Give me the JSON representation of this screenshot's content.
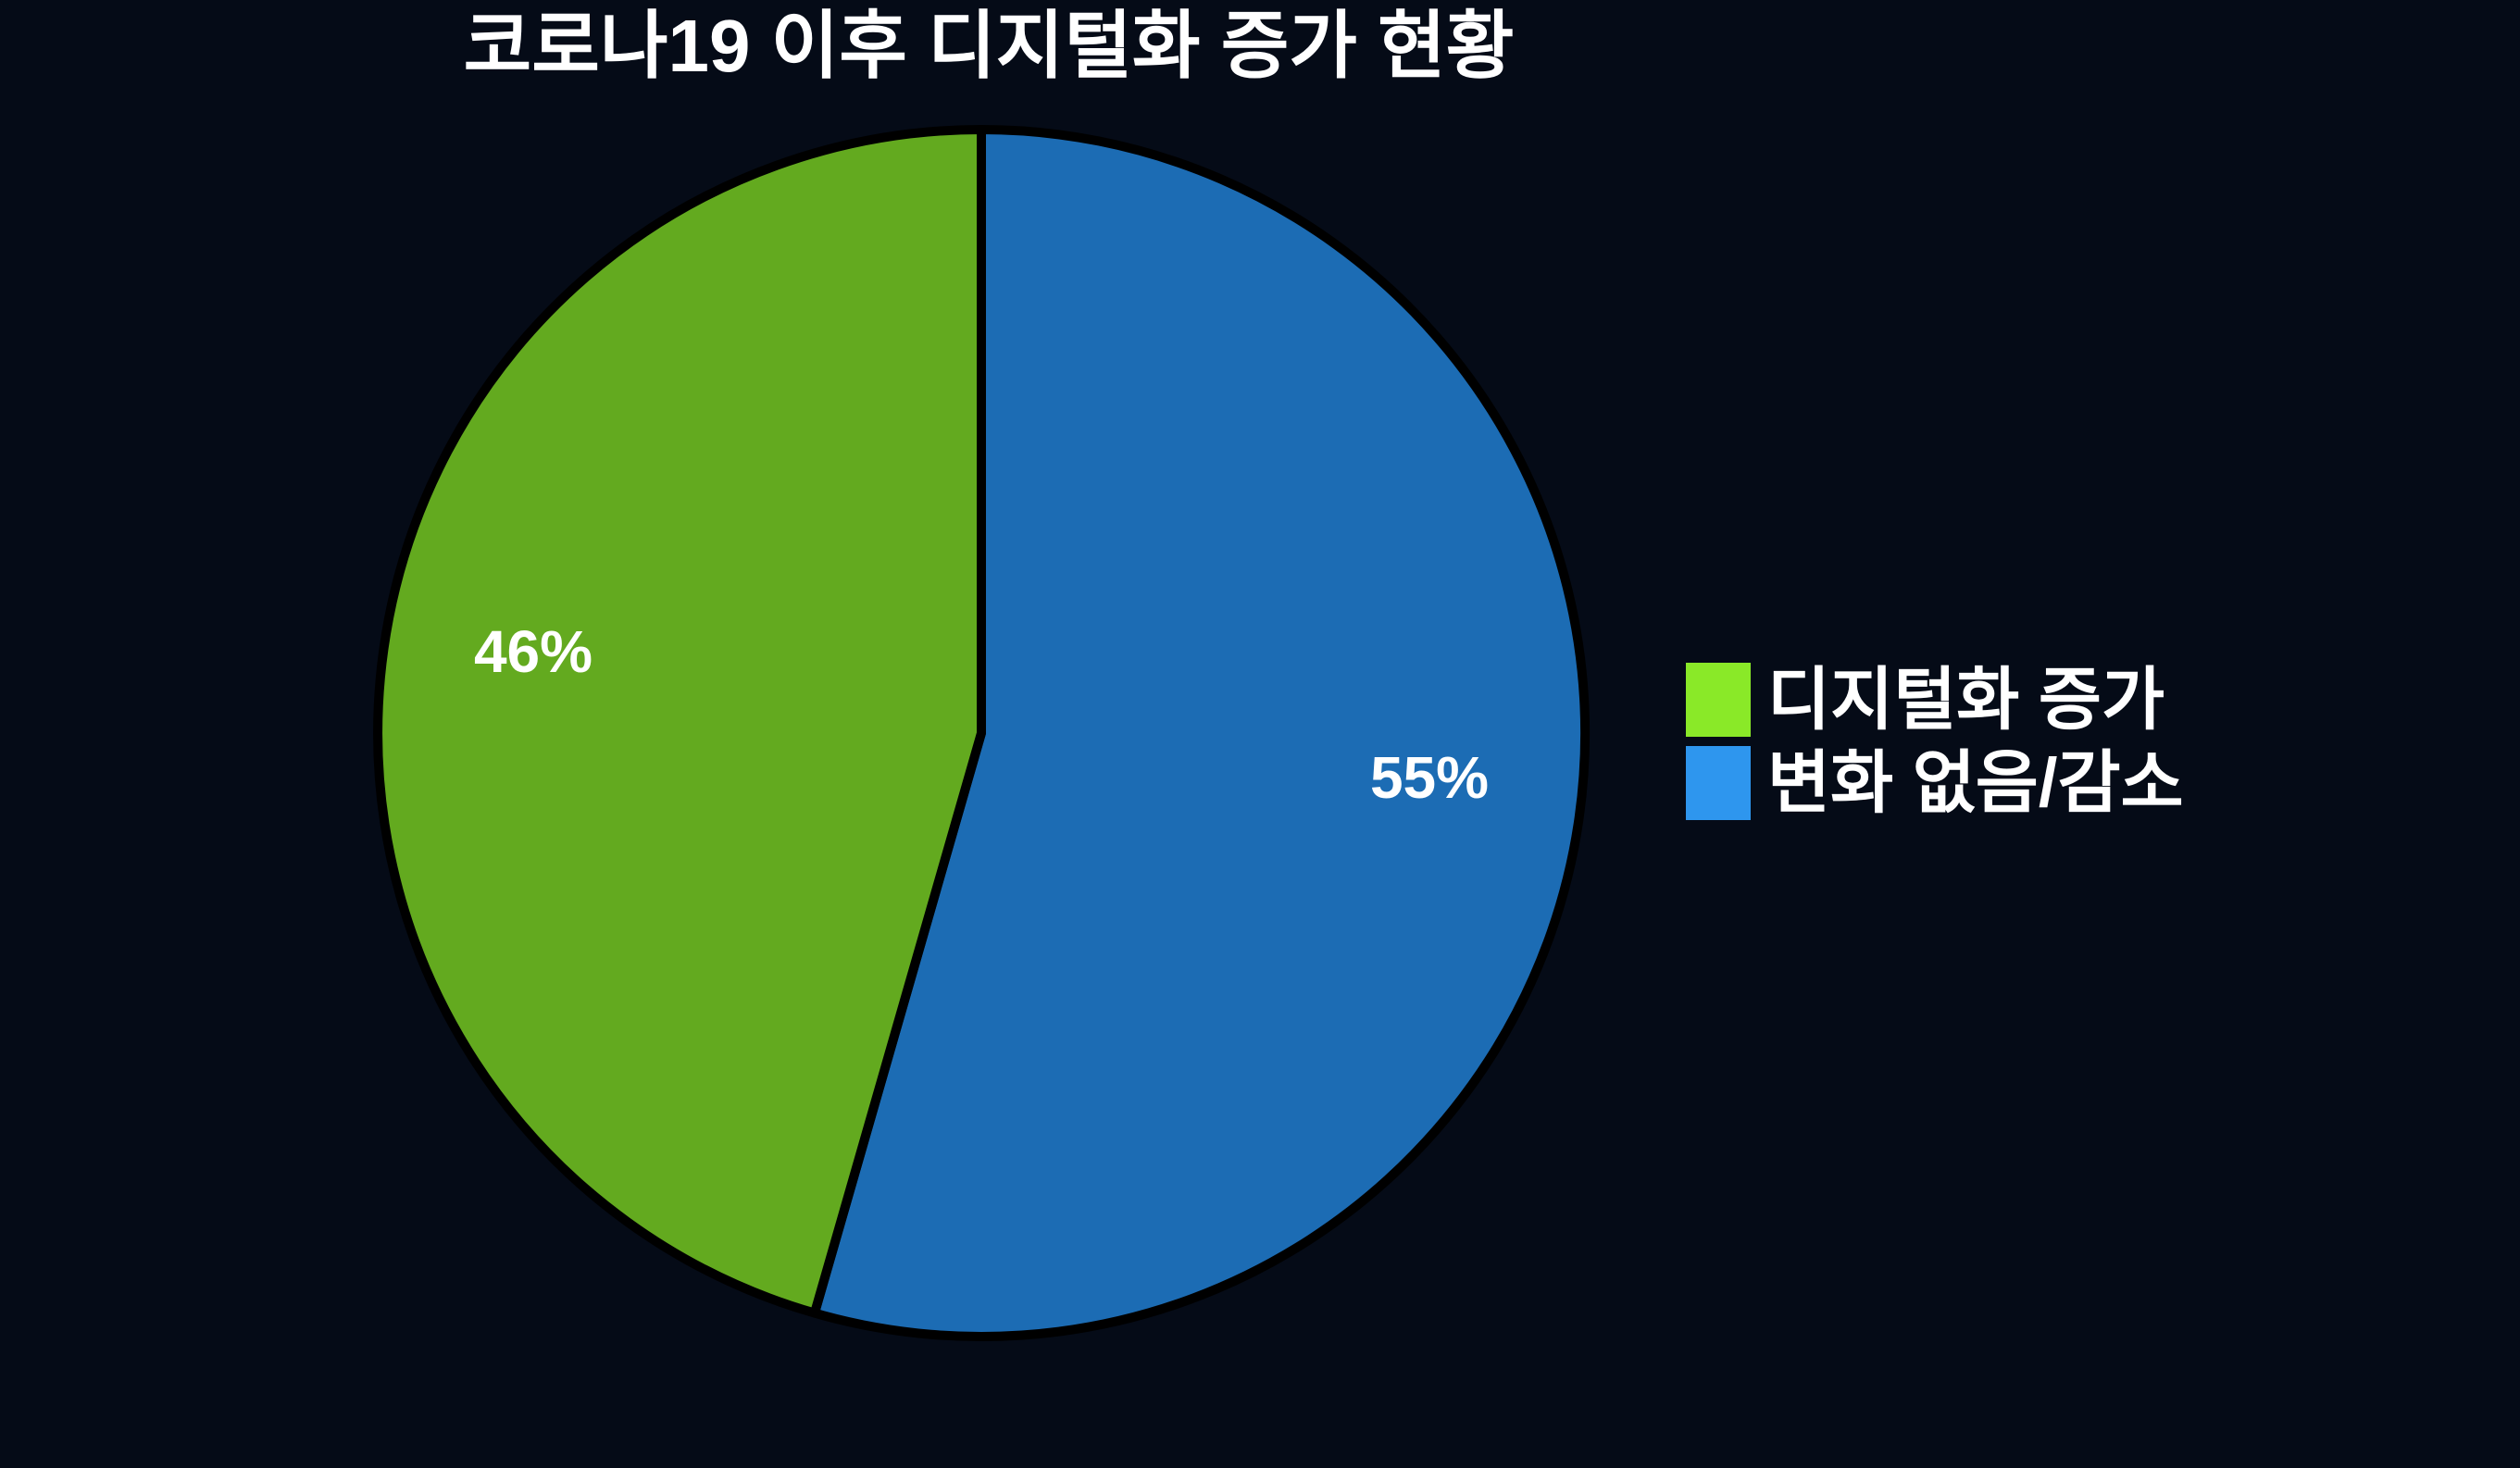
{
  "title": "코로나19 이후 디지털화 증가 현황",
  "colors": {
    "background": "#050b17",
    "slice_outline": "#000000",
    "text": "#ffffff"
  },
  "chart_data": {
    "type": "pie",
    "title": "코로나19 이후 디지털화 증가 현황",
    "legend_position": "right",
    "start_angle_deg": 0,
    "slices": [
      {
        "label": "디지털화 증가",
        "value": 46,
        "percent_label": "46%",
        "pie_color": "#63aa1f",
        "legend_color": "#8ae928",
        "side": "left"
      },
      {
        "label": "변화 없음/감소",
        "value": 55,
        "percent_label": "55%",
        "pie_color": "#1c6cb4",
        "legend_color": "#2e96ee",
        "side": "right"
      }
    ]
  }
}
